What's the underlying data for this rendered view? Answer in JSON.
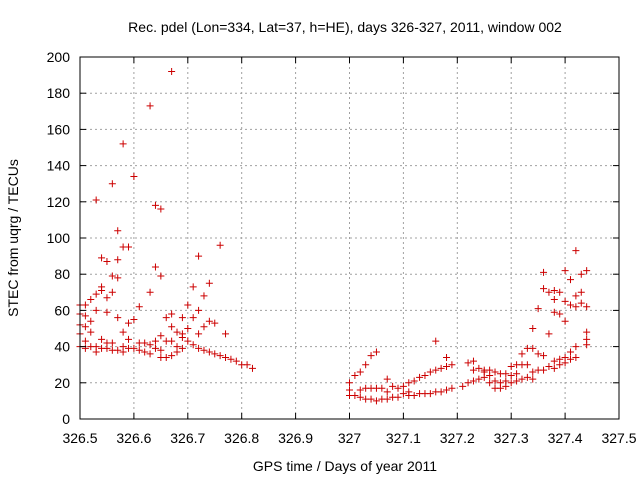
{
  "chart_data": {
    "type": "scatter",
    "title": "Rec. pdel (Lon=334, Lat=37, h=HE), days 326-327, 2011, window 002",
    "xlabel": "GPS time / Days of year 2011",
    "ylabel": "STEC from uqrg / TECUs",
    "xlim": [
      326.5,
      327.5
    ],
    "ylim": [
      0,
      200
    ],
    "x_ticks": [
      "326.5",
      "326.6",
      "326.7",
      "326.8",
      "326.9",
      "327",
      "327.1",
      "327.2",
      "327.3",
      "327.4",
      "327.5"
    ],
    "y_ticks": [
      "0",
      "20",
      "40",
      "60",
      "80",
      "100",
      "120",
      "140",
      "160",
      "180",
      "200"
    ],
    "grid": true,
    "marker": "+",
    "color": "#cc0000",
    "series": [
      {
        "points": [
          [
            326.5,
            63
          ],
          [
            326.5,
            58
          ],
          [
            326.5,
            52
          ],
          [
            326.5,
            47
          ],
          [
            326.5,
            40
          ],
          [
            326.51,
            63
          ],
          [
            326.51,
            57
          ],
          [
            326.51,
            51
          ],
          [
            326.51,
            43
          ],
          [
            326.51,
            39
          ],
          [
            326.52,
            66
          ],
          [
            326.52,
            54
          ],
          [
            326.52,
            48
          ],
          [
            326.52,
            40
          ],
          [
            326.53,
            121
          ],
          [
            326.53,
            69
          ],
          [
            326.53,
            60
          ],
          [
            326.53,
            40
          ],
          [
            326.53,
            37
          ],
          [
            326.54,
            89
          ],
          [
            326.54,
            73
          ],
          [
            326.54,
            71
          ],
          [
            326.54,
            44
          ],
          [
            326.54,
            39
          ],
          [
            326.55,
            87
          ],
          [
            326.55,
            67
          ],
          [
            326.55,
            59
          ],
          [
            326.55,
            42
          ],
          [
            326.55,
            39
          ],
          [
            326.56,
            130
          ],
          [
            326.56,
            79
          ],
          [
            326.56,
            70
          ],
          [
            326.56,
            42
          ],
          [
            326.56,
            38
          ],
          [
            326.57,
            104
          ],
          [
            326.57,
            88
          ],
          [
            326.57,
            78
          ],
          [
            326.57,
            56
          ],
          [
            326.57,
            38
          ],
          [
            326.58,
            152
          ],
          [
            326.58,
            95
          ],
          [
            326.58,
            48
          ],
          [
            326.58,
            40
          ],
          [
            326.58,
            37
          ],
          [
            326.59,
            95
          ],
          [
            326.59,
            53
          ],
          [
            326.59,
            44
          ],
          [
            326.59,
            39
          ],
          [
            326.6,
            134
          ],
          [
            326.6,
            55
          ],
          [
            326.6,
            39
          ],
          [
            326.61,
            62
          ],
          [
            326.61,
            42
          ],
          [
            326.61,
            38
          ],
          [
            326.62,
            37
          ],
          [
            326.62,
            42
          ],
          [
            326.63,
            173
          ],
          [
            326.63,
            70
          ],
          [
            326.63,
            41
          ],
          [
            326.63,
            36
          ],
          [
            326.64,
            118
          ],
          [
            326.64,
            84
          ],
          [
            326.64,
            43
          ],
          [
            326.64,
            39
          ],
          [
            326.65,
            116
          ],
          [
            326.65,
            79
          ],
          [
            326.65,
            46
          ],
          [
            326.65,
            38
          ],
          [
            326.65,
            34
          ],
          [
            326.66,
            56
          ],
          [
            326.66,
            43
          ],
          [
            326.66,
            34
          ],
          [
            326.67,
            192
          ],
          [
            326.67,
            58
          ],
          [
            326.67,
            51
          ],
          [
            326.67,
            43
          ],
          [
            326.67,
            35
          ],
          [
            326.68,
            48
          ],
          [
            326.68,
            40
          ],
          [
            326.68,
            37
          ],
          [
            326.69,
            56
          ],
          [
            326.69,
            47
          ],
          [
            326.69,
            45
          ],
          [
            326.69,
            39
          ],
          [
            326.7,
            63
          ],
          [
            326.7,
            50
          ],
          [
            326.7,
            43
          ],
          [
            326.71,
            73
          ],
          [
            326.71,
            56
          ],
          [
            326.71,
            41
          ],
          [
            326.72,
            90
          ],
          [
            326.72,
            60
          ],
          [
            326.72,
            47
          ],
          [
            326.72,
            39
          ],
          [
            326.73,
            68
          ],
          [
            326.73,
            51
          ],
          [
            326.73,
            38
          ],
          [
            326.74,
            75
          ],
          [
            326.74,
            54
          ],
          [
            326.74,
            37
          ],
          [
            326.75,
            53
          ],
          [
            326.75,
            36
          ],
          [
            326.76,
            96
          ],
          [
            326.76,
            35
          ],
          [
            326.77,
            47
          ],
          [
            326.77,
            34
          ],
          [
            326.78,
            33
          ],
          [
            326.79,
            32
          ],
          [
            326.8,
            30
          ],
          [
            326.81,
            30
          ],
          [
            326.82,
            28
          ],
          [
            327.0,
            20
          ],
          [
            327.0,
            16
          ],
          [
            327.0,
            13
          ],
          [
            327.01,
            24
          ],
          [
            327.01,
            13
          ],
          [
            327.02,
            26
          ],
          [
            327.02,
            16
          ],
          [
            327.02,
            12
          ],
          [
            327.03,
            30
          ],
          [
            327.03,
            17
          ],
          [
            327.03,
            11
          ],
          [
            327.04,
            35
          ],
          [
            327.04,
            17
          ],
          [
            327.04,
            11
          ],
          [
            327.05,
            37
          ],
          [
            327.05,
            17
          ],
          [
            327.05,
            10
          ],
          [
            327.06,
            17
          ],
          [
            327.06,
            11
          ],
          [
            327.07,
            22
          ],
          [
            327.07,
            15
          ],
          [
            327.07,
            11
          ],
          [
            327.08,
            18
          ],
          [
            327.08,
            12
          ],
          [
            327.09,
            17
          ],
          [
            327.09,
            12
          ],
          [
            327.1,
            18
          ],
          [
            327.1,
            14
          ],
          [
            327.11,
            20
          ],
          [
            327.11,
            15
          ],
          [
            327.11,
            13
          ],
          [
            327.12,
            21
          ],
          [
            327.12,
            13
          ],
          [
            327.13,
            23
          ],
          [
            327.13,
            14
          ],
          [
            327.14,
            24
          ],
          [
            327.14,
            14
          ],
          [
            327.15,
            26
          ],
          [
            327.15,
            14
          ],
          [
            327.16,
            43
          ],
          [
            327.16,
            27
          ],
          [
            327.16,
            15
          ],
          [
            327.17,
            28
          ],
          [
            327.17,
            15
          ],
          [
            327.18,
            34
          ],
          [
            327.18,
            29
          ],
          [
            327.18,
            16
          ],
          [
            327.19,
            30
          ],
          [
            327.19,
            17
          ],
          [
            327.21,
            18
          ],
          [
            327.22,
            31
          ],
          [
            327.22,
            20
          ],
          [
            327.23,
            32
          ],
          [
            327.23,
            27
          ],
          [
            327.23,
            21
          ],
          [
            327.24,
            28
          ],
          [
            327.24,
            22
          ],
          [
            327.25,
            27
          ],
          [
            327.25,
            26
          ],
          [
            327.25,
            23
          ],
          [
            327.26,
            27
          ],
          [
            327.26,
            24
          ],
          [
            327.26,
            20
          ],
          [
            327.27,
            26
          ],
          [
            327.27,
            21
          ],
          [
            327.27,
            17
          ],
          [
            327.28,
            25
          ],
          [
            327.28,
            20
          ],
          [
            327.28,
            17
          ],
          [
            327.29,
            25
          ],
          [
            327.29,
            21
          ],
          [
            327.29,
            18
          ],
          [
            327.3,
            29
          ],
          [
            327.3,
            24
          ],
          [
            327.3,
            20
          ],
          [
            327.31,
            30
          ],
          [
            327.31,
            25
          ],
          [
            327.31,
            21
          ],
          [
            327.32,
            36
          ],
          [
            327.32,
            30
          ],
          [
            327.32,
            22
          ],
          [
            327.33,
            39
          ],
          [
            327.33,
            30
          ],
          [
            327.33,
            23
          ],
          [
            327.34,
            50
          ],
          [
            327.34,
            39
          ],
          [
            327.34,
            26
          ],
          [
            327.34,
            22
          ],
          [
            327.35,
            61
          ],
          [
            327.35,
            36
          ],
          [
            327.35,
            27
          ],
          [
            327.36,
            81
          ],
          [
            327.36,
            72
          ],
          [
            327.36,
            35
          ],
          [
            327.36,
            27
          ],
          [
            327.37,
            70
          ],
          [
            327.37,
            47
          ],
          [
            327.37,
            29
          ],
          [
            327.38,
            71
          ],
          [
            327.38,
            66
          ],
          [
            327.38,
            59
          ],
          [
            327.38,
            32
          ],
          [
            327.38,
            28
          ],
          [
            327.39,
            70
          ],
          [
            327.39,
            58
          ],
          [
            327.39,
            33
          ],
          [
            327.39,
            30
          ],
          [
            327.4,
            82
          ],
          [
            327.4,
            65
          ],
          [
            327.4,
            54
          ],
          [
            327.4,
            34
          ],
          [
            327.4,
            31
          ],
          [
            327.41,
            77
          ],
          [
            327.41,
            63
          ],
          [
            327.41,
            37
          ],
          [
            327.41,
            33
          ],
          [
            327.42,
            93
          ],
          [
            327.42,
            68
          ],
          [
            327.42,
            62
          ],
          [
            327.42,
            40
          ],
          [
            327.42,
            34
          ],
          [
            327.43,
            80
          ],
          [
            327.43,
            70
          ],
          [
            327.43,
            64
          ],
          [
            327.44,
            82
          ],
          [
            327.44,
            62
          ],
          [
            327.44,
            48
          ],
          [
            327.44,
            44
          ],
          [
            327.44,
            41
          ]
        ]
      }
    ]
  }
}
